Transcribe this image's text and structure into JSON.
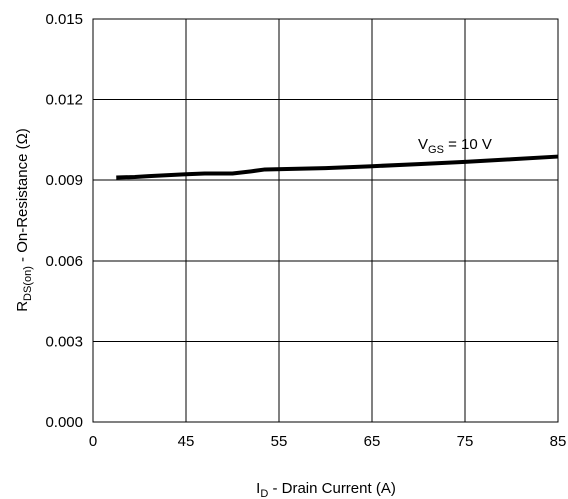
{
  "chart_data": {
    "type": "line",
    "title": "",
    "xlabel": {
      "main": "I",
      "sub": "D",
      "rest": "  -  Drain Current (A)"
    },
    "ylabel": {
      "main": "R",
      "sub": "DS(on)",
      "rest": " - On-Resistance (Ω)"
    },
    "x_tick_labels": [
      "0",
      "45",
      "55",
      "65",
      "75",
      "85"
    ],
    "y_tick_labels": [
      "0.000",
      "0.003",
      "0.006",
      "0.009",
      "0.012",
      "0.015"
    ],
    "xlim": [
      35,
      85
    ],
    "ylim": [
      0.0,
      0.015
    ],
    "grid": true,
    "series": [
      {
        "name": "",
        "color": "#000000",
        "x": [
          37.5,
          39.5,
          41,
          45,
          47,
          50,
          52,
          53.5,
          60,
          65,
          70,
          75,
          80,
          85
        ],
        "y": [
          0.0091,
          0.00912,
          0.00915,
          0.00922,
          0.00925,
          0.00925,
          0.00933,
          0.0094,
          0.00945,
          0.00952,
          0.0096,
          0.00968,
          0.00978,
          0.00988
        ]
      }
    ],
    "annotation": {
      "main": "V",
      "sub": "GS",
      "rest": " = 10 V",
      "x": 75,
      "y": 0.0105
    }
  }
}
